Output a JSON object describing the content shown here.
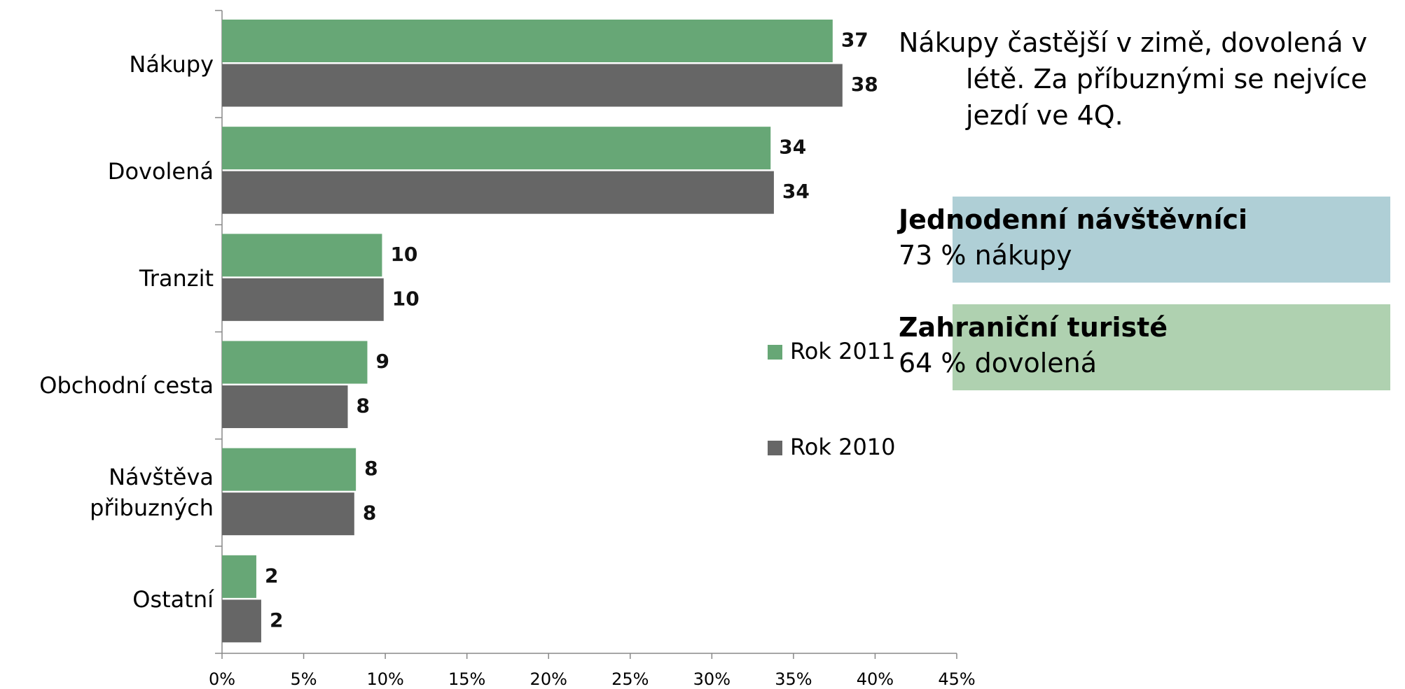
{
  "chart_data": {
    "type": "hbar",
    "categories": [
      "Nákupy",
      "Dovolená",
      "Tranzit",
      "Obchodní cesta",
      "Návštěva přibuzných",
      "Ostatní"
    ],
    "series": [
      {
        "name": "Rok 2011",
        "color": "#67a776",
        "values": [
          37.4,
          33.6,
          9.8,
          8.9,
          8.2,
          2.1
        ],
        "value_labels": [
          "37",
          "34",
          "10",
          "9",
          "8",
          "2"
        ]
      },
      {
        "name": "Rok 2010",
        "color": "#666666",
        "values": [
          38.0,
          33.8,
          9.9,
          7.7,
          8.1,
          2.4
        ],
        "value_labels": [
          "38",
          "34",
          "10",
          "8",
          "8",
          "2"
        ]
      }
    ],
    "xlim": [
      0,
      45
    ],
    "xticks": [
      {
        "value": 0,
        "label": "0%"
      },
      {
        "value": 5,
        "label": "5%"
      },
      {
        "value": 10,
        "label": "10%"
      },
      {
        "value": 15,
        "label": "15%"
      },
      {
        "value": 20,
        "label": "20%"
      },
      {
        "value": 25,
        "label": "25%"
      },
      {
        "value": 30,
        "label": "30%"
      },
      {
        "value": 35,
        "label": "35%"
      },
      {
        "value": 40,
        "label": "40%"
      },
      {
        "value": 45,
        "label": "45%"
      }
    ],
    "annotations": {
      "note": "Nákupy častější v zimě, dovolená v létě. Za příbuznými se nejvíce jezdí ve 4Q.",
      "boxes": [
        {
          "heading": "Jednodenní návštěvníci",
          "text": "73 % nákupy",
          "color": "#afcfd6"
        },
        {
          "heading": "Zahraniční turisté",
          "text": "64 % dovolená",
          "color": "#afd1b0"
        }
      ]
    }
  }
}
